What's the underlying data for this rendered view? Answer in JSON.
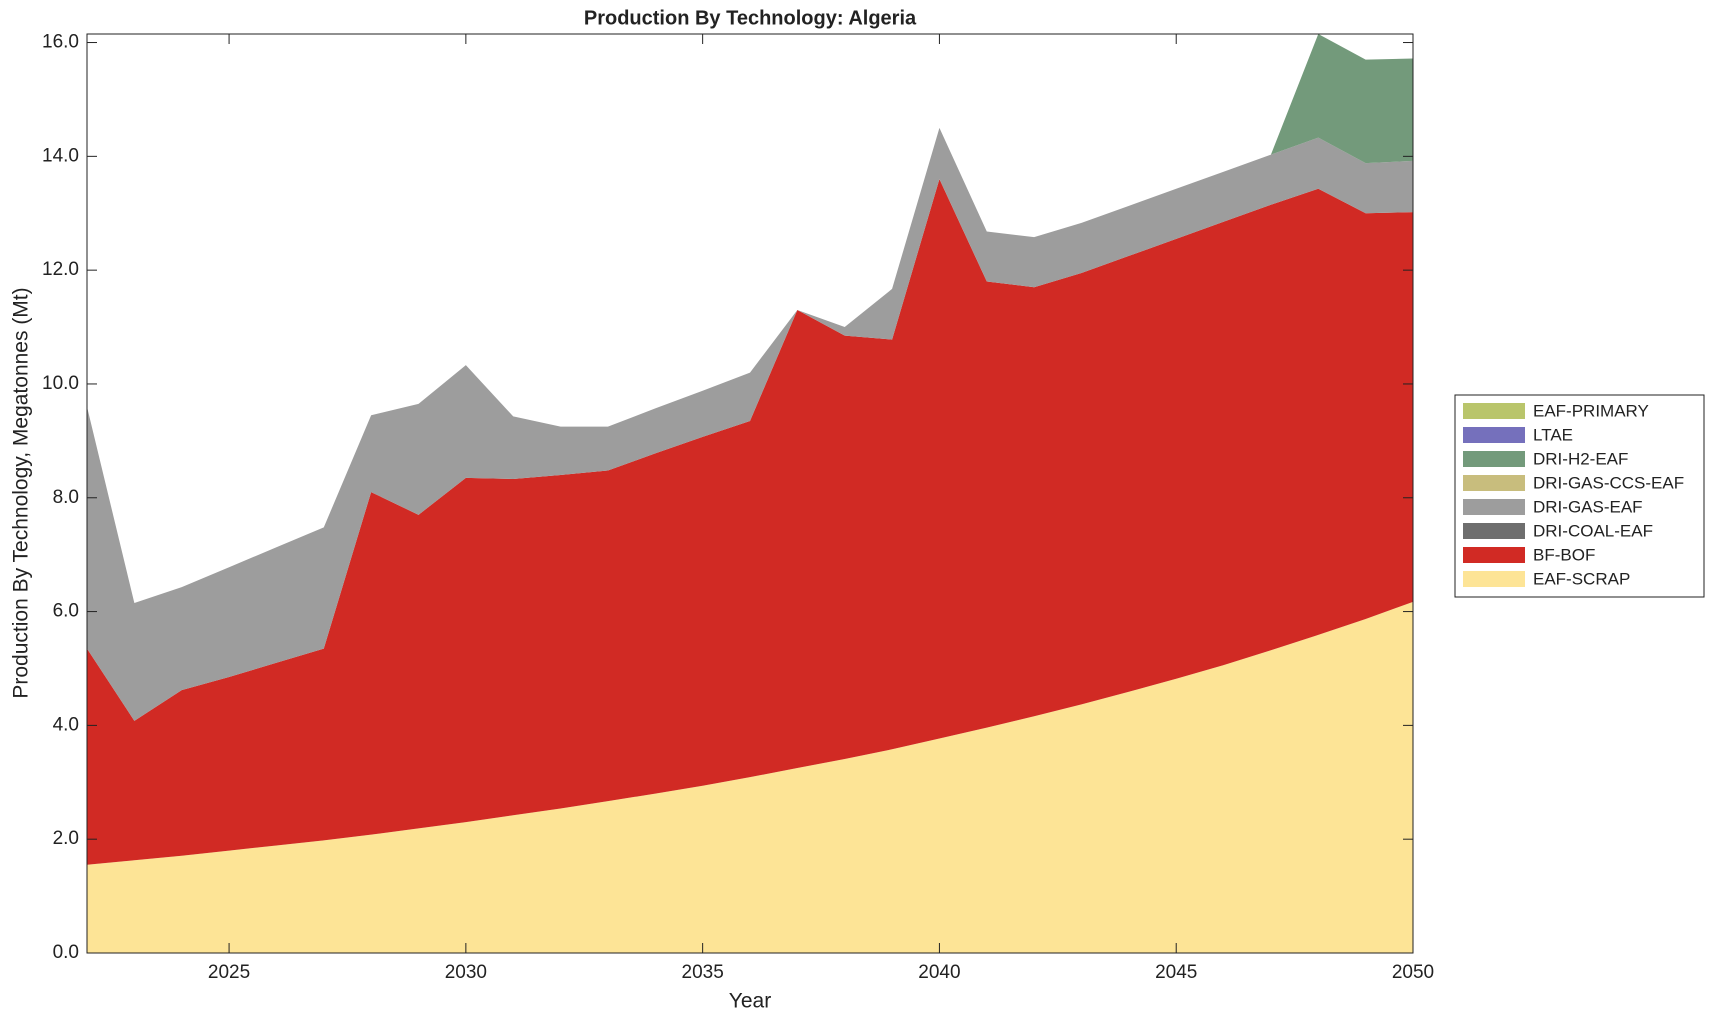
{
  "chart_data": {
    "type": "stacked-area",
    "title": "Production By Technology: Algeria",
    "xlabel": "Year",
    "ylabel": "Production By Technology, Megatonnes (Mt)",
    "x": [
      2022,
      2023,
      2024,
      2025,
      2026,
      2027,
      2028,
      2029,
      2030,
      2031,
      2032,
      2033,
      2034,
      2035,
      2036,
      2037,
      2038,
      2039,
      2040,
      2041,
      2042,
      2043,
      2044,
      2045,
      2046,
      2047,
      2048,
      2049,
      2050
    ],
    "series": [
      {
        "name": "EAF-SCRAP",
        "color": "#fde496",
        "values": [
          1.55,
          1.63,
          1.71,
          1.8,
          1.89,
          1.98,
          2.08,
          2.19,
          2.3,
          2.42,
          2.54,
          2.67,
          2.8,
          2.94,
          3.09,
          3.25,
          3.41,
          3.58,
          3.77,
          3.96,
          4.16,
          4.37,
          4.59,
          4.82,
          5.06,
          5.32,
          5.59,
          5.87,
          6.17
        ]
      },
      {
        "name": "BF-BOF",
        "color": "#d12a24",
        "values": [
          3.8,
          2.45,
          2.91,
          3.05,
          3.21,
          3.37,
          6.02,
          5.51,
          6.05,
          5.91,
          5.86,
          5.81,
          5.98,
          6.13,
          6.26,
          8.05,
          7.44,
          7.2,
          9.83,
          7.84,
          7.54,
          7.58,
          7.66,
          7.73,
          7.79,
          7.83,
          7.84,
          7.13,
          6.85
        ]
      },
      {
        "name": "DRI-COAL-EAF",
        "color": "#6e6e6e",
        "values": [
          0,
          0,
          0,
          0,
          0,
          0,
          0,
          0,
          0,
          0,
          0,
          0,
          0,
          0,
          0,
          0,
          0,
          0,
          0,
          0,
          0,
          0,
          0,
          0,
          0,
          0,
          0,
          0,
          0
        ]
      },
      {
        "name": "DRI-GAS-EAF",
        "color": "#9d9d9d",
        "values": [
          4.25,
          2.07,
          1.81,
          1.93,
          2.03,
          2.13,
          1.35,
          1.95,
          1.98,
          1.1,
          0.85,
          0.77,
          0.79,
          0.81,
          0.85,
          0,
          0.15,
          0.89,
          0.9,
          0.88,
          0.88,
          0.88,
          0.88,
          0.88,
          0.88,
          0.88,
          0.9,
          0.88,
          0.9
        ]
      },
      {
        "name": "DRI-GAS-CCS-EAF",
        "color": "#c8bd7d",
        "values": [
          0,
          0,
          0,
          0,
          0,
          0,
          0,
          0,
          0,
          0,
          0,
          0,
          0,
          0,
          0,
          0,
          0,
          0,
          0,
          0,
          0,
          0,
          0,
          0,
          0,
          0,
          0,
          0,
          0
        ]
      },
      {
        "name": "DRI-H2-EAF",
        "color": "#739a7b",
        "values": [
          0,
          0,
          0,
          0,
          0,
          0,
          0,
          0,
          0,
          0,
          0,
          0,
          0,
          0,
          0,
          0,
          0,
          0,
          0,
          0,
          0,
          0,
          0,
          0,
          0,
          0,
          1.82,
          1.82,
          1.8
        ]
      },
      {
        "name": "LTAE",
        "color": "#7570bc",
        "values": [
          0,
          0,
          0,
          0,
          0,
          0,
          0,
          0,
          0,
          0,
          0,
          0,
          0,
          0,
          0,
          0,
          0,
          0,
          0,
          0,
          0,
          0,
          0,
          0,
          0,
          0,
          0,
          0,
          0
        ]
      },
      {
        "name": "EAF-PRIMARY",
        "color": "#b9c56b",
        "values": [
          0,
          0,
          0,
          0,
          0,
          0,
          0,
          0,
          0,
          0,
          0,
          0,
          0,
          0,
          0,
          0,
          0,
          0,
          0,
          0,
          0,
          0,
          0,
          0,
          0,
          0,
          0,
          0,
          0
        ]
      }
    ],
    "xlim": [
      2022,
      2050
    ],
    "xticks": [
      2025,
      2030,
      2035,
      2040,
      2045,
      2050
    ],
    "ylim": [
      0,
      16.15
    ],
    "yticks": [
      {
        "value": 0,
        "label": "0.0"
      },
      {
        "value": 2,
        "label": "2.0"
      },
      {
        "value": 4,
        "label": "4.0"
      },
      {
        "value": 6,
        "label": "6.0"
      },
      {
        "value": 8,
        "label": "8.0"
      },
      {
        "value": 10,
        "label": "10.0"
      },
      {
        "value": 12,
        "label": "12.0"
      },
      {
        "value": 14,
        "label": "14.0"
      },
      {
        "value": 16,
        "label": "16.0"
      }
    ],
    "legend": "right"
  }
}
